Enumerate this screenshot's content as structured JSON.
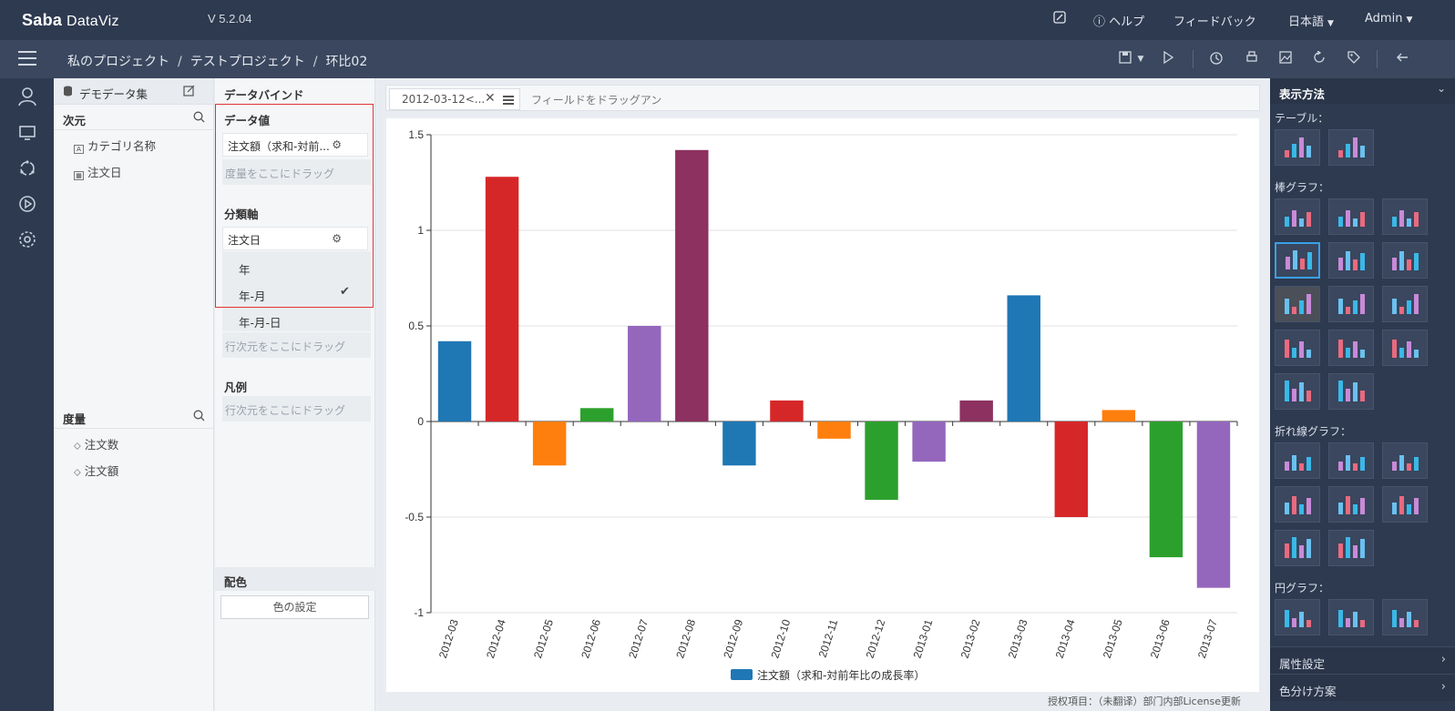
{
  "app": {
    "logo_main": "Saba",
    "logo_sub": " DataViz",
    "version": "V 5.2.04",
    "help": "ヘルプ",
    "feedback": "フィードバック",
    "language": "日本語",
    "user": "Admin"
  },
  "breadcrumb": {
    "items": [
      "私のプロジェクト",
      "テストプロジェクト",
      "环比02"
    ],
    "separator": "/"
  },
  "dataset": {
    "title": "デモデータ集",
    "dimensions_label": "次元",
    "dimensions": [
      "カテゴリ名称",
      "注文日"
    ],
    "measures_label": "度量",
    "measures": [
      "注文数",
      "注文額"
    ]
  },
  "binding": {
    "title": "データバインド",
    "value_label": "データ値",
    "value_field": "注文額（求和-対前...",
    "value_drop": "度量をここにドラッグ",
    "axis_label": "分類軸",
    "axis_field": "注文日",
    "axis_options": [
      "年",
      "年-月",
      "年-月-日"
    ],
    "axis_selected": "年-月",
    "axis_drop": "行次元をここにドラッグ",
    "legend_label": "凡例",
    "legend_drop": "行次元をここにドラッグ",
    "color_label": "配色",
    "color_button": "色の設定"
  },
  "filter": {
    "chip": "2012-03-12<...",
    "hint": "フィールドをドラッグアン"
  },
  "chart_data": {
    "type": "bar",
    "categories": [
      "2012-03",
      "2012-04",
      "2012-05",
      "2012-06",
      "2012-07",
      "2012-08",
      "2012-09",
      "2012-10",
      "2012-11",
      "2012-12",
      "2013-01",
      "2013-02",
      "2013-03",
      "2013-04",
      "2013-05",
      "2013-06",
      "2013-07"
    ],
    "values": [
      0.42,
      1.28,
      -0.23,
      0.07,
      0.5,
      1.42,
      -0.23,
      0.11,
      -0.09,
      -0.41,
      -0.21,
      0.11,
      0.66,
      -0.5,
      0.06,
      -0.71,
      -0.87
    ],
    "colors": [
      "#1f77b4",
      "#d62728",
      "#ff7f0e",
      "#2ca02c",
      "#9467bd",
      "#8c3160",
      "#1f77b4",
      "#d62728",
      "#ff7f0e",
      "#2ca02c",
      "#9467bd",
      "#8c3160",
      "#1f77b4",
      "#d62728",
      "#ff7f0e",
      "#2ca02c",
      "#9467bd"
    ],
    "ylim": [
      -1,
      1.5
    ],
    "yticks": [
      "1.5",
      "1",
      "0.5",
      "0",
      "-0.5",
      "-1"
    ],
    "ytick_values": [
      1.5,
      1,
      0.5,
      0,
      -0.5,
      -1
    ],
    "legend": "注文額（求和-対前年比の成長率）",
    "legend_color": "#1f77b4",
    "legend_position": "bottom",
    "grid": true
  },
  "right_panel": {
    "title": "表示方法",
    "groups": [
      "テーブル：",
      "棒グラフ：",
      "折れ線グラフ：",
      "円グラフ："
    ],
    "footer1": "属性設定",
    "footer2": "色分け方案"
  },
  "status": "授权項目：（未翻译）部门内部License更新"
}
